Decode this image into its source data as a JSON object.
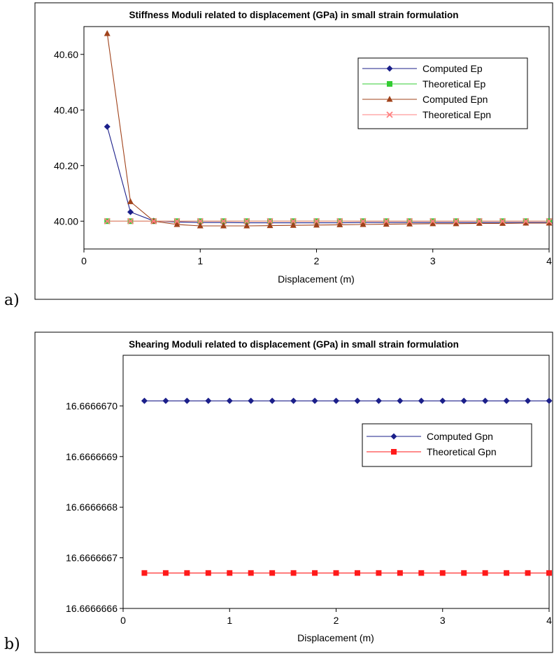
{
  "chart_data": [
    {
      "panel_label": "a)",
      "type": "line",
      "title": "Stiffness Moduli related to displacement (GPa) in small strain formulation",
      "xlabel": "Displacement (m)",
      "ylabel": "",
      "xlim": [
        0,
        4
      ],
      "ylim": [
        39.9,
        40.7
      ],
      "x_ticks": [
        "0",
        "1",
        "2",
        "3",
        "4"
      ],
      "y_ticks": [
        "40.00",
        "40.20",
        "40.40",
        "40.60"
      ],
      "grid": false,
      "legend": "top-right",
      "x": [
        0.2,
        0.4,
        0.6,
        0.8,
        1.0,
        1.2,
        1.4,
        1.6,
        1.8,
        2.0,
        2.2,
        2.4,
        2.6,
        2.8,
        3.0,
        3.2,
        3.4,
        3.6,
        3.8,
        4.0
      ],
      "series": [
        {
          "name": "Computed Ep",
          "color": "#1b1f8a",
          "marker": "diamond",
          "values": [
            40.34,
            40.033,
            40.001,
            39.997,
            39.995,
            39.995,
            39.994,
            39.994,
            39.994,
            39.994,
            39.994,
            39.995,
            39.995,
            39.995,
            39.995,
            39.995,
            39.995,
            39.995,
            39.995,
            39.995
          ]
        },
        {
          "name": "Theoretical Ep",
          "color": "#33cc33",
          "marker": "square",
          "values": [
            40.0,
            40.0,
            40.0,
            40.0,
            40.0,
            40.0,
            40.0,
            40.0,
            40.0,
            40.0,
            40.0,
            40.0,
            40.0,
            40.0,
            40.0,
            40.0,
            40.0,
            40.0,
            40.0,
            40.0
          ]
        },
        {
          "name": "Computed Epn",
          "color": "#a0421a",
          "marker": "triangle",
          "values": [
            40.675,
            40.07,
            40.0,
            39.988,
            39.983,
            39.983,
            39.983,
            39.984,
            39.985,
            39.986,
            39.987,
            39.988,
            39.989,
            39.99,
            39.991,
            39.991,
            39.992,
            39.992,
            39.993,
            39.993
          ]
        },
        {
          "name": "Theoretical Epn",
          "color": "#ff8080",
          "marker": "x",
          "values": [
            40.0,
            40.0,
            40.0,
            40.0,
            40.0,
            40.0,
            40.0,
            40.0,
            40.0,
            40.0,
            40.0,
            40.0,
            40.0,
            40.0,
            40.0,
            40.0,
            40.0,
            40.0,
            40.0,
            40.0
          ]
        }
      ]
    },
    {
      "panel_label": "b)",
      "type": "line",
      "title": "Shearing Moduli related to displacement (GPa) in small strain formulation",
      "xlabel": "Displacement (m)",
      "ylabel": "",
      "xlim": [
        0,
        4
      ],
      "ylim": [
        16.6666666,
        16.6666671
      ],
      "x_ticks": [
        "0",
        "1",
        "2",
        "3",
        "4"
      ],
      "y_ticks": [
        "16.6666666",
        "16.6666667",
        "16.6666668",
        "16.6666669",
        "16.6666670"
      ],
      "grid": false,
      "legend": "right",
      "x": [
        0.2,
        0.4,
        0.6,
        0.8,
        1.0,
        1.2,
        1.4,
        1.6,
        1.8,
        2.0,
        2.2,
        2.4,
        2.6,
        2.8,
        3.0,
        3.2,
        3.4,
        3.6,
        3.8,
        4.0
      ],
      "series": [
        {
          "name": "Computed Gpn",
          "color": "#1b1f8a",
          "marker": "diamond",
          "values": [
            16.66666701,
            16.66666701,
            16.66666701,
            16.66666701,
            16.66666701,
            16.66666701,
            16.66666701,
            16.66666701,
            16.66666701,
            16.66666701,
            16.66666701,
            16.66666701,
            16.66666701,
            16.66666701,
            16.66666701,
            16.66666701,
            16.66666701,
            16.66666701,
            16.66666701,
            16.66666701
          ]
        },
        {
          "name": "Theoretical Gpn",
          "color": "#ff1a1a",
          "marker": "square",
          "values": [
            16.66666667,
            16.66666667,
            16.66666667,
            16.66666667,
            16.66666667,
            16.66666667,
            16.66666667,
            16.66666667,
            16.66666667,
            16.66666667,
            16.66666667,
            16.66666667,
            16.66666667,
            16.66666667,
            16.66666667,
            16.66666667,
            16.66666667,
            16.66666667,
            16.66666667,
            16.66666667
          ]
        }
      ]
    }
  ]
}
